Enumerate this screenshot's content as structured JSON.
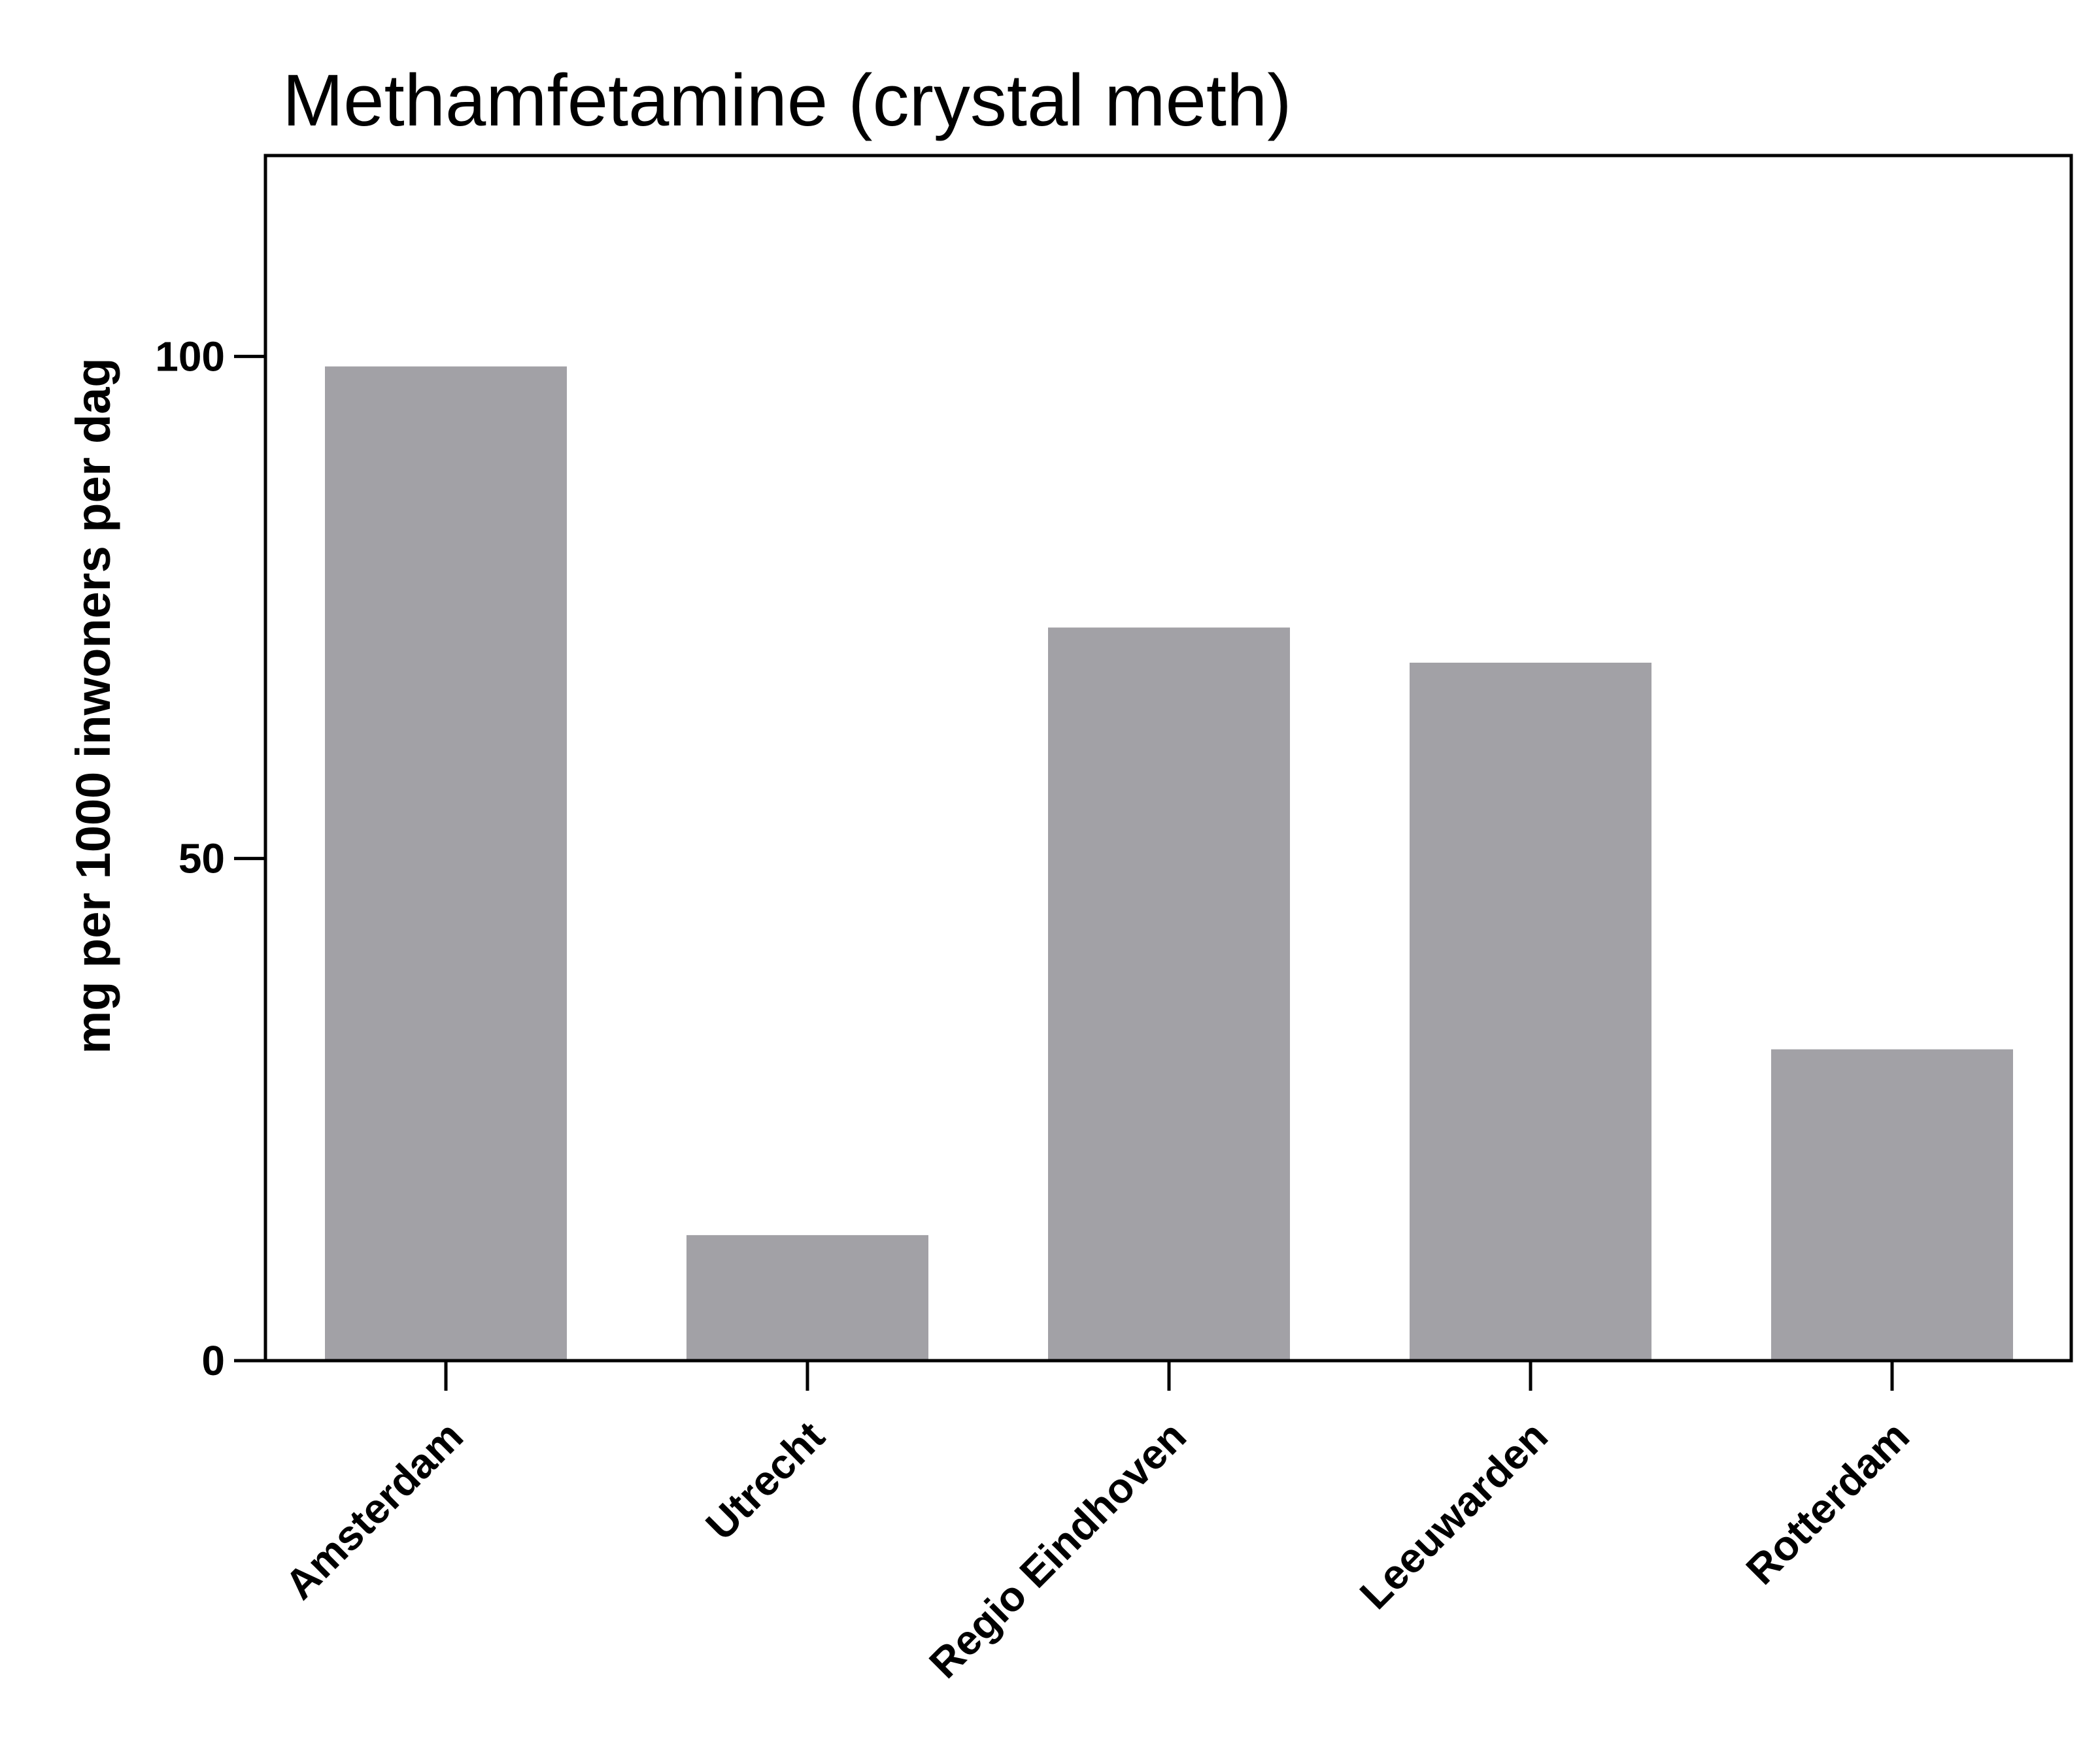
{
  "chart_data": {
    "type": "bar",
    "title": "Methamfetamine (crystal meth)",
    "xlabel": "",
    "ylabel": "mg per 1000 inwoners per dag",
    "categories": [
      "Amsterdam",
      "Utrecht",
      "Regio Eindhoven",
      "Leeuwarden",
      "Rotterdam"
    ],
    "values": [
      99,
      12.5,
      73,
      69.5,
      31
    ],
    "ylim": [
      0,
      120
    ],
    "yticks": [
      0,
      50,
      100
    ],
    "ytick_labels": [
      "0",
      "50",
      "100"
    ],
    "grid": false,
    "bar_color": "#a2a1a6"
  }
}
